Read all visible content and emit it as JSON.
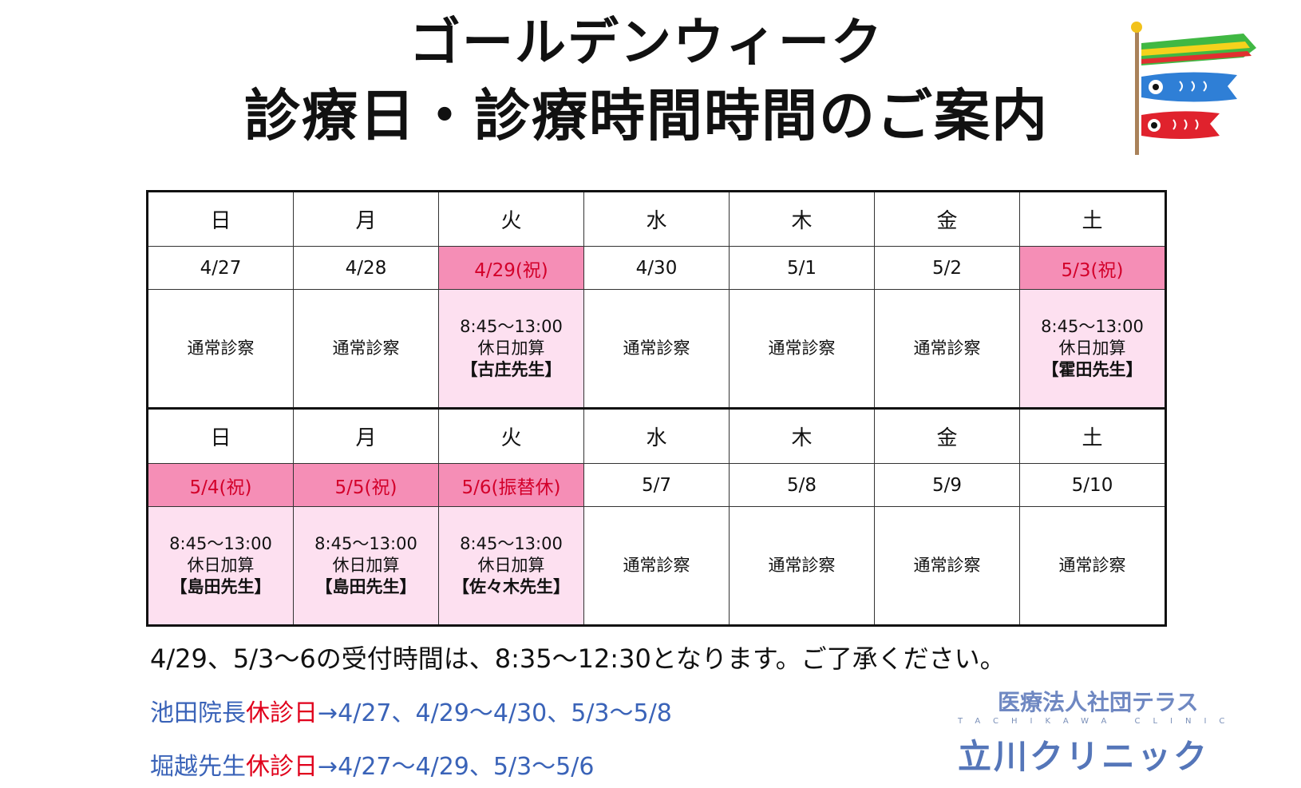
{
  "title": {
    "line1": "ゴールデンウィーク",
    "line2": "診療日・診療時間時間のご案内"
  },
  "decoration": {
    "icon": "koinobori-carp-streamer-icon"
  },
  "schedule": {
    "week1": [
      {
        "day": "日",
        "date": "4/27",
        "info": [
          "通常診察"
        ],
        "holiday": false,
        "day_color": "red"
      },
      {
        "day": "月",
        "date": "4/28",
        "info": [
          "通常診察"
        ],
        "holiday": false
      },
      {
        "day": "火",
        "date": "4/29(祝)",
        "info": [
          "8:45〜13:00",
          "休日加算",
          "【古庄先生】"
        ],
        "holiday": true
      },
      {
        "day": "水",
        "date": "4/30",
        "info": [
          "通常診察"
        ],
        "holiday": false
      },
      {
        "day": "木",
        "date": "5/1",
        "info": [
          "通常診察"
        ],
        "holiday": false
      },
      {
        "day": "金",
        "date": "5/2",
        "info": [
          "通常診察"
        ],
        "holiday": false
      },
      {
        "day": "土",
        "date": "5/3(祝)",
        "info": [
          "8:45〜13:00",
          "休日加算",
          "【霍田先生】"
        ],
        "holiday": true,
        "day_color": "blue"
      }
    ],
    "week2": [
      {
        "day": "日",
        "date": "5/4(祝)",
        "info": [
          "8:45〜13:00",
          "休日加算",
          "【島田先生】"
        ],
        "holiday": true,
        "day_color": "red"
      },
      {
        "day": "月",
        "date": "5/5(祝)",
        "info": [
          "8:45〜13:00",
          "休日加算",
          "【島田先生】"
        ],
        "holiday": true
      },
      {
        "day": "火",
        "date": "5/6(振替休)",
        "info": [
          "8:45〜13:00",
          "休日加算",
          "【佐々木先生】"
        ],
        "holiday": true
      },
      {
        "day": "水",
        "date": "5/7",
        "info": [
          "通常診察"
        ],
        "holiday": false
      },
      {
        "day": "木",
        "date": "5/8",
        "info": [
          "通常診察"
        ],
        "holiday": false
      },
      {
        "day": "金",
        "date": "5/9",
        "info": [
          "通常診察"
        ],
        "holiday": false
      },
      {
        "day": "土",
        "date": "5/10",
        "info": [
          "通常診察"
        ],
        "holiday": false,
        "day_color": "blue"
      }
    ]
  },
  "notice": "4/29、5/3〜6の受付時間は、8:35〜12:30となります。ご了承ください。",
  "absences": [
    {
      "name": "池田院長",
      "label": "休診日",
      "dates": "→4/27、4/29〜4/30、5/3〜5/8"
    },
    {
      "name": "堀越先生",
      "label": "休診日",
      "dates": "→4/27〜4/29、5/3〜5/6"
    }
  ],
  "logo": {
    "org": "医療法人社団テラス",
    "roman": "TACHIKAWA CLINIC",
    "name": "立川クリニック"
  },
  "colors": {
    "red": "#e0001b",
    "blue": "#3a63b8",
    "holiday_date_bg": "#f58eb6",
    "holiday_info_bg": "#fde0f0"
  }
}
